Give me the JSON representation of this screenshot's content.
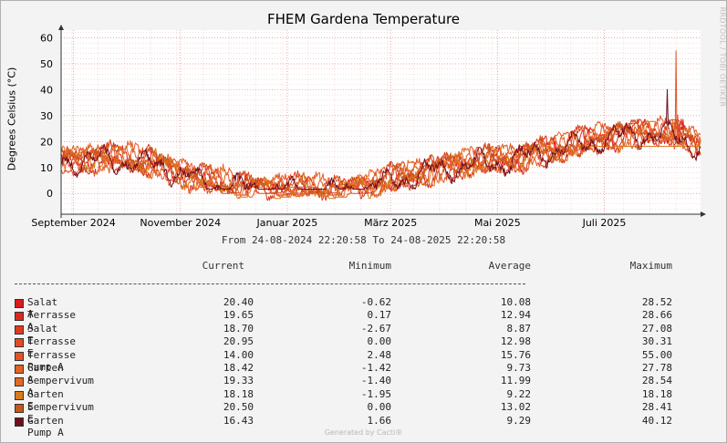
{
  "chart_data": {
    "type": "line",
    "title": "FHEM Gardena Temperature",
    "ylabel": "Degrees Celsius (°C)",
    "xlabel": "",
    "ylim": [
      -8,
      63
    ],
    "y_ticks": [
      0,
      10,
      20,
      30,
      40,
      50,
      60
    ],
    "x_range": [
      "2024-08-24",
      "2025-08-24"
    ],
    "x_ticks": [
      {
        "label": "September 2024",
        "date": "2024-09-01"
      },
      {
        "label": "November 2024",
        "date": "2024-11-01"
      },
      {
        "label": "Januar 2025",
        "date": "2025-01-01"
      },
      {
        "label": "März 2025",
        "date": "2025-03-01"
      },
      {
        "label": "Mai 2025",
        "date": "2025-05-01"
      },
      {
        "label": "Juli 2025",
        "date": "2025-07-01"
      }
    ],
    "grid": true,
    "side_text": "RRDTOOL / TOBI OETIKER",
    "range_text": "From 24-08-2024 22:20:58 To 24-08-2025 22:20:58",
    "columns": [
      "Current",
      "Minimum",
      "Average",
      "Maximum"
    ],
    "series": [
      {
        "name": "Salat A",
        "color": "#d91c1c",
        "current": "20.40",
        "minimum": "-0.62",
        "average": "10.08",
        "maximum": "28.52"
      },
      {
        "name": "Terrasse A",
        "color": "#dc2a1e",
        "current": "19.65",
        "minimum": "0.17",
        "average": "12.94",
        "maximum": "28.66"
      },
      {
        "name": "Salat E",
        "color": "#e03b22",
        "current": "18.70",
        "minimum": "-2.67",
        "average": "8.87",
        "maximum": "27.08"
      },
      {
        "name": "Terrasse E",
        "color": "#e34b24",
        "current": "20.95",
        "minimum": "0.00",
        "average": "12.98",
        "maximum": "30.31"
      },
      {
        "name": "Terrasse Pump A",
        "color": "#e25426",
        "current": "14.00",
        "minimum": "2.48",
        "average": "15.76",
        "maximum": "55.00"
      },
      {
        "name": "Garten A",
        "color": "#e06224",
        "current": "18.42",
        "minimum": "-1.42",
        "average": "9.73",
        "maximum": "27.78"
      },
      {
        "name": "Sempervivum A",
        "color": "#e06a22",
        "current": "19.33",
        "minimum": "-1.40",
        "average": "11.99",
        "maximum": "28.54"
      },
      {
        "name": "Garten E",
        "color": "#d97a1e",
        "current": "18.18",
        "minimum": "-1.95",
        "average": "9.22",
        "maximum": "18.18"
      },
      {
        "name": "Sempervivum E",
        "color": "#c8551a",
        "current": "20.50",
        "minimum": "0.00",
        "average": "13.02",
        "maximum": "28.41"
      },
      {
        "name": "Garten Pump A",
        "color": "#6e0f1e",
        "current": "16.43",
        "minimum": "1.66",
        "average": "9.29",
        "maximum": "40.12"
      }
    ]
  },
  "footer": "Generated by Cacti®"
}
